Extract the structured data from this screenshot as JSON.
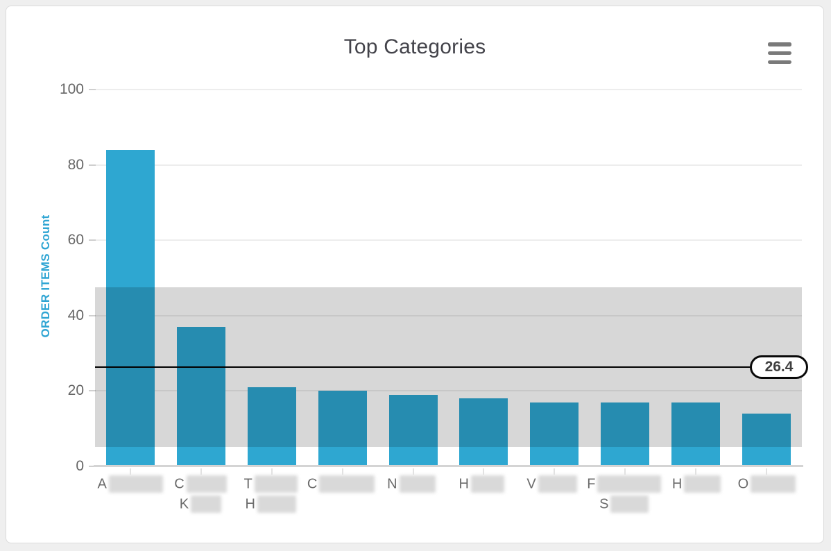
{
  "header": {
    "title": "Top Categories",
    "menu_icon": "hamburger-icon"
  },
  "chart_data": {
    "type": "bar",
    "title": "Top Categories",
    "xlabel": "",
    "ylabel": "ORDER ITEMS Count",
    "ylim": [
      0,
      100
    ],
    "yticks": [
      0,
      20,
      40,
      60,
      80,
      100
    ],
    "grid": true,
    "legend": false,
    "bar_color": "#2ea7d1",
    "values": [
      84,
      37,
      21,
      20,
      19,
      18,
      17,
      17,
      17,
      14
    ],
    "categories": [
      {
        "redacted": true,
        "lines": [
          {
            "visible_text": "A",
            "redact_width": 78
          }
        ]
      },
      {
        "redacted": true,
        "lines": [
          {
            "visible_text": "C",
            "redact_width": 58
          },
          {
            "visible_text": "K",
            "redact_width": 44
          }
        ]
      },
      {
        "redacted": true,
        "lines": [
          {
            "visible_text": "T",
            "redact_width": 62
          },
          {
            "visible_text": "H",
            "redact_width": 56
          }
        ]
      },
      {
        "redacted": true,
        "lines": [
          {
            "visible_text": "C",
            "redact_width": 80
          }
        ]
      },
      {
        "redacted": true,
        "lines": [
          {
            "visible_text": "N",
            "redact_width": 52
          }
        ]
      },
      {
        "redacted": true,
        "lines": [
          {
            "visible_text": "H",
            "redact_width": 48
          }
        ]
      },
      {
        "redacted": true,
        "lines": [
          {
            "visible_text": "V",
            "redact_width": 56
          }
        ]
      },
      {
        "redacted": true,
        "lines": [
          {
            "visible_text": "F",
            "redact_width": 92
          },
          {
            "visible_text": "S",
            "redact_width": 55
          }
        ]
      },
      {
        "redacted": true,
        "lines": [
          {
            "visible_text": "H",
            "redact_width": 53
          }
        ]
      },
      {
        "redacted": true,
        "lines": [
          {
            "visible_text": "O",
            "redact_width": 65
          }
        ]
      }
    ],
    "mean_line": {
      "value": 26.4,
      "label": "26.4",
      "line_color": "#000000"
    },
    "band": {
      "from": 5.2,
      "to": 47.6,
      "overlay_color": "rgba(0,0,0,0.155)"
    }
  }
}
